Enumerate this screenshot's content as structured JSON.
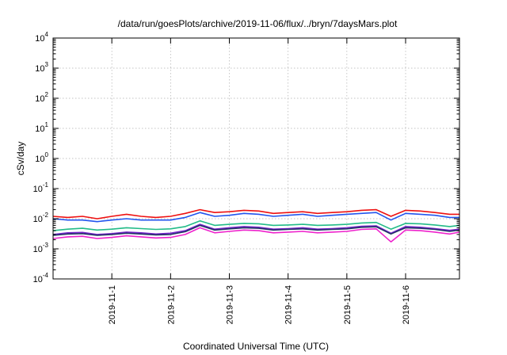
{
  "chart_data": {
    "type": "line",
    "title": "/data/run/goesPlots/archive/2019-11-06/flux/../bryn/7daysMars.plot",
    "xlabel": "Coordinated Universal Time (UTC)",
    "ylabel": "cSv/day",
    "yscale": "log",
    "ylim": [
      0.0001,
      10000
    ],
    "xlim": [
      "2019-10-31T00:00",
      "2019-11-06T22:00"
    ],
    "grid": true,
    "y_ticks": [
      {
        "base": "10",
        "exp": "4",
        "value": 10000
      },
      {
        "base": "10",
        "exp": "3",
        "value": 1000
      },
      {
        "base": "10",
        "exp": "2",
        "value": 100
      },
      {
        "base": "10",
        "exp": "1",
        "value": 10
      },
      {
        "base": "10",
        "exp": "0",
        "value": 1
      },
      {
        "base": "10",
        "exp": "-1",
        "value": 0.1
      },
      {
        "base": "10",
        "exp": "-2",
        "value": 0.01
      },
      {
        "base": "10",
        "exp": "-3",
        "value": 0.001
      },
      {
        "base": "10",
        "exp": "-4",
        "value": 0.0001
      }
    ],
    "x_ticks": [
      {
        "label": "2019-11-1",
        "value": "2019-11-01"
      },
      {
        "label": "2019-11-2",
        "value": "2019-11-02"
      },
      {
        "label": "2019-11-3",
        "value": "2019-11-03"
      },
      {
        "label": "2019-11-4",
        "value": "2019-11-04"
      },
      {
        "label": "2019-11-5",
        "value": "2019-11-05"
      },
      {
        "label": "2019-11-6",
        "value": "2019-11-06"
      }
    ],
    "x": [
      "2019-10-31T00:00",
      "2019-10-31T06:00",
      "2019-10-31T12:00",
      "2019-10-31T18:00",
      "2019-11-01T00:00",
      "2019-11-01T06:00",
      "2019-11-01T12:00",
      "2019-11-01T18:00",
      "2019-11-02T00:00",
      "2019-11-02T06:00",
      "2019-11-02T12:00",
      "2019-11-02T18:00",
      "2019-11-03T00:00",
      "2019-11-03T06:00",
      "2019-11-03T12:00",
      "2019-11-03T18:00",
      "2019-11-04T00:00",
      "2019-11-04T06:00",
      "2019-11-04T12:00",
      "2019-11-04T18:00",
      "2019-11-05T00:00",
      "2019-11-05T06:00",
      "2019-11-05T12:00",
      "2019-11-05T18:00",
      "2019-11-06T00:00",
      "2019-11-06T06:00",
      "2019-11-06T12:00",
      "2019-11-06T18:00",
      "2019-11-06T22:00"
    ],
    "series": [
      {
        "color": "#ee1111",
        "values": [
          0.012,
          0.011,
          0.012,
          0.01,
          0.012,
          0.014,
          0.012,
          0.011,
          0.012,
          0.015,
          0.02,
          0.016,
          0.017,
          0.019,
          0.018,
          0.015,
          0.016,
          0.017,
          0.015,
          0.016,
          0.017,
          0.019,
          0.02,
          0.012,
          0.019,
          0.018,
          0.016,
          0.014,
          0.014
        ]
      },
      {
        "color": "#2255ee",
        "values": [
          0.01,
          0.009,
          0.009,
          0.008,
          0.009,
          0.01,
          0.009,
          0.009,
          0.009,
          0.011,
          0.016,
          0.012,
          0.013,
          0.015,
          0.014,
          0.012,
          0.013,
          0.014,
          0.012,
          0.013,
          0.014,
          0.015,
          0.016,
          0.009,
          0.015,
          0.014,
          0.013,
          0.011,
          0.011
        ]
      },
      {
        "color": "#22bb88",
        "values": [
          0.004,
          0.0045,
          0.0048,
          0.0042,
          0.0045,
          0.005,
          0.0047,
          0.0044,
          0.0046,
          0.0055,
          0.0085,
          0.006,
          0.0065,
          0.007,
          0.0068,
          0.006,
          0.0062,
          0.0065,
          0.006,
          0.0062,
          0.0065,
          0.0072,
          0.0075,
          0.0045,
          0.007,
          0.0068,
          0.0062,
          0.0055,
          0.006
        ]
      },
      {
        "color": "#7722cc",
        "values": [
          0.003,
          0.0034,
          0.0035,
          0.003,
          0.0032,
          0.0036,
          0.0034,
          0.0031,
          0.0033,
          0.004,
          0.0065,
          0.0045,
          0.005,
          0.0055,
          0.0052,
          0.0045,
          0.0047,
          0.005,
          0.0045,
          0.0047,
          0.005,
          0.0056,
          0.0058,
          0.0033,
          0.0055,
          0.0052,
          0.0047,
          0.0041,
          0.0045
        ]
      },
      {
        "color": "#223366",
        "values": [
          0.0028,
          0.0031,
          0.0032,
          0.0028,
          0.003,
          0.0033,
          0.0031,
          0.0029,
          0.003,
          0.0037,
          0.006,
          0.0042,
          0.0046,
          0.005,
          0.0048,
          0.0042,
          0.0044,
          0.0046,
          0.0042,
          0.0044,
          0.0046,
          0.0052,
          0.0054,
          0.0031,
          0.005,
          0.0048,
          0.0044,
          0.0038,
          0.0042
        ]
      },
      {
        "color": "#ee22cc",
        "values": [
          0.0022,
          0.0025,
          0.0026,
          0.0022,
          0.0024,
          0.0027,
          0.0025,
          0.0023,
          0.0024,
          0.003,
          0.005,
          0.0034,
          0.0038,
          0.0042,
          0.004,
          0.0034,
          0.0036,
          0.0038,
          0.0034,
          0.0036,
          0.0038,
          0.0044,
          0.0046,
          0.0017,
          0.0042,
          0.004,
          0.0036,
          0.0031,
          0.0036
        ]
      }
    ]
  }
}
